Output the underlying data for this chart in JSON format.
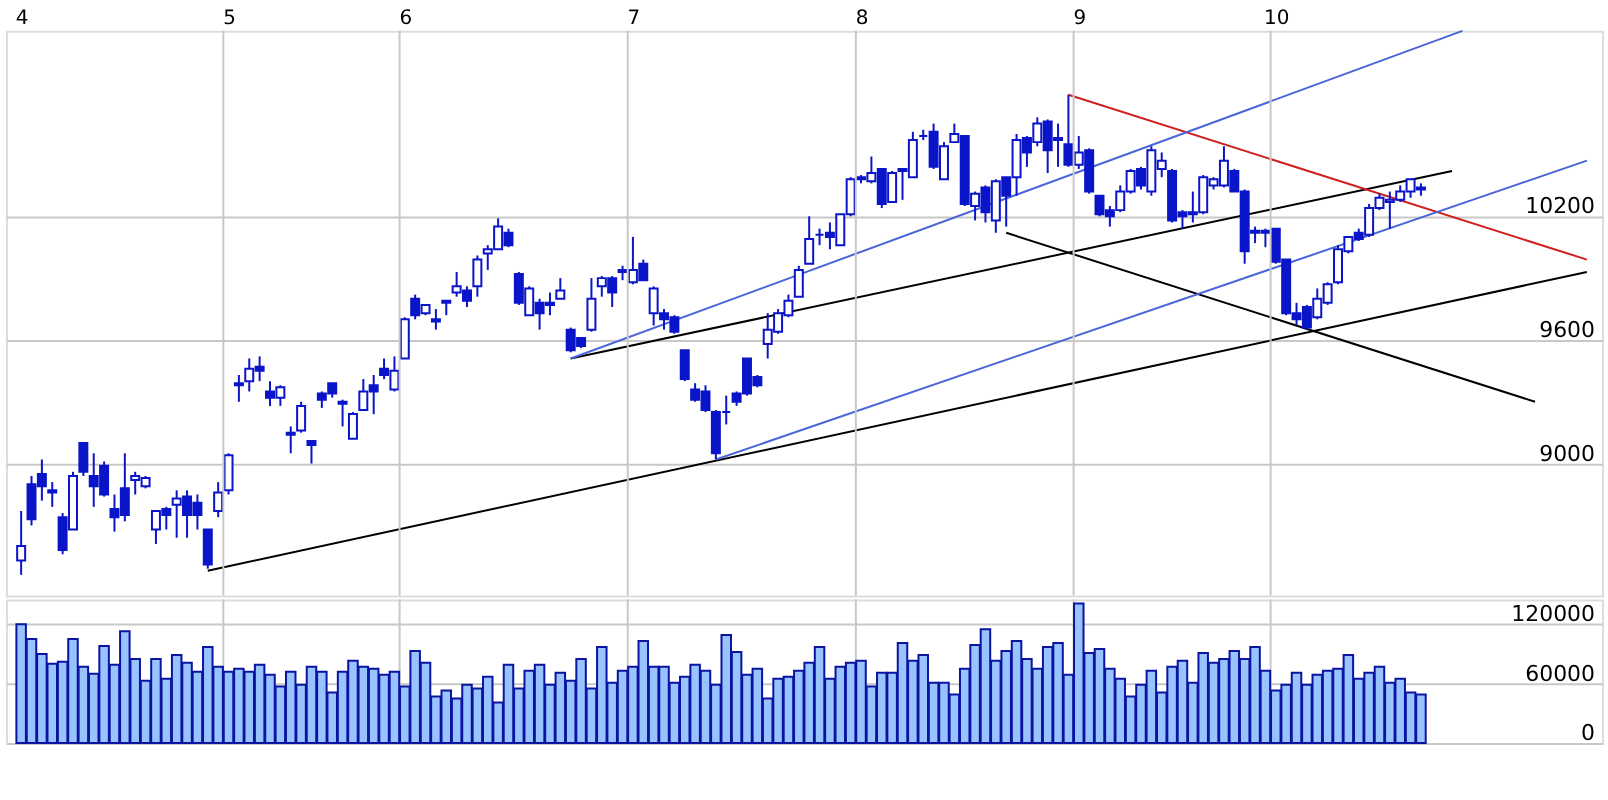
{
  "chart_data": [
    {
      "type": "candlestick",
      "color": "#0a14c8",
      "grid": true,
      "ylim": [
        8360,
        11100
      ],
      "yticks": [
        9000,
        9600,
        10200
      ],
      "categories": [
        "4",
        null,
        null,
        null,
        null,
        null,
        null,
        null,
        null,
        null,
        null,
        null,
        null,
        null,
        null,
        null,
        null,
        null,
        null,
        null,
        "5",
        null,
        null,
        null,
        null,
        null,
        null,
        null,
        null,
        null,
        null,
        null,
        null,
        null,
        null,
        null,
        null,
        "6",
        null,
        null,
        null,
        null,
        null,
        null,
        null,
        null,
        null,
        null,
        null,
        null,
        null,
        null,
        null,
        null,
        null,
        null,
        null,
        null,
        null,
        "7",
        null,
        null,
        null,
        null,
        null,
        null,
        null,
        null,
        null,
        null,
        null,
        null,
        null,
        null,
        null,
        null,
        null,
        null,
        null,
        null,
        null,
        "8",
        null,
        null,
        null,
        null,
        null,
        null,
        null,
        null,
        null,
        null,
        null,
        null,
        null,
        null,
        null,
        null,
        null,
        null,
        null,
        null,
        "9",
        null,
        null,
        null,
        null,
        null,
        null,
        null,
        null,
        null,
        null,
        null,
        null,
        null,
        null,
        null,
        null,
        null,
        null,
        "10",
        null,
        null,
        null,
        null,
        null,
        null,
        null,
        null,
        null,
        null,
        null,
        null,
        null,
        null,
        null,
        null,
        null,
        null,
        null,
        null,
        null,
        null,
        null,
        null,
        null,
        null,
        null,
        null,
        null,
        null
      ],
      "ohlc": [
        [
          8530,
          8770,
          8460,
          8600
        ],
        [
          8900,
          8940,
          8700,
          8730
        ],
        [
          8950,
          9020,
          8820,
          8890
        ],
        [
          8870,
          8910,
          8790,
          8860
        ],
        [
          8740,
          8760,
          8560,
          8580
        ],
        [
          8680,
          8960,
          8680,
          8940
        ],
        [
          9100,
          9100,
          8940,
          8960
        ],
        [
          8940,
          9050,
          8790,
          8890
        ],
        [
          8990,
          9010,
          8840,
          8850
        ],
        [
          8780,
          8850,
          8670,
          8740
        ],
        [
          8880,
          9050,
          8720,
          8750
        ],
        [
          8920,
          8960,
          8850,
          8940
        ],
        [
          8890,
          8940,
          8880,
          8930
        ],
        [
          8680,
          8770,
          8610,
          8770
        ],
        [
          8780,
          8790,
          8680,
          8750
        ],
        [
          8800,
          8870,
          8640,
          8830
        ],
        [
          8840,
          8870,
          8640,
          8750
        ],
        [
          8810,
          8850,
          8680,
          8750
        ],
        [
          8680,
          8680,
          8490,
          8510
        ],
        [
          8770,
          8910,
          8740,
          8860
        ],
        [
          8870,
          9050,
          8850,
          9040
        ],
        [
          9380,
          9430,
          9300,
          9390
        ],
        [
          9400,
          9510,
          9350,
          9460
        ],
        [
          9470,
          9520,
          9400,
          9450
        ],
        [
          9350,
          9400,
          9280,
          9320
        ],
        [
          9320,
          9380,
          9280,
          9370
        ],
        [
          9150,
          9180,
          9050,
          9140
        ],
        [
          9160,
          9300,
          9150,
          9280
        ],
        [
          9110,
          9110,
          9000,
          9090
        ],
        [
          9340,
          9350,
          9270,
          9310
        ],
        [
          9390,
          9390,
          9320,
          9340
        ],
        [
          9300,
          9310,
          9180,
          9290
        ],
        [
          9120,
          9250,
          9120,
          9240
        ],
        [
          9260,
          9410,
          9260,
          9350
        ],
        [
          9380,
          9430,
          9240,
          9350
        ],
        [
          9460,
          9510,
          9410,
          9430
        ],
        [
          9360,
          9520,
          9350,
          9450
        ],
        [
          9510,
          9710,
          9510,
          9700
        ],
        [
          9800,
          9820,
          9700,
          9720
        ],
        [
          9730,
          9770,
          9720,
          9770
        ],
        [
          9700,
          9750,
          9650,
          9690
        ],
        [
          9780,
          9790,
          9720,
          9790
        ],
        [
          9830,
          9930,
          9810,
          9860
        ],
        [
          9840,
          9860,
          9760,
          9790
        ],
        [
          9860,
          10010,
          9810,
          9990
        ],
        [
          10020,
          10060,
          9940,
          10040
        ],
        [
          10040,
          10190,
          10040,
          10150
        ],
        [
          10120,
          10140,
          10050,
          10060
        ],
        [
          9920,
          9930,
          9770,
          9780
        ],
        [
          9720,
          9860,
          9720,
          9850
        ],
        [
          9780,
          9800,
          9650,
          9730
        ],
        [
          9780,
          9830,
          9720,
          9770
        ],
        [
          9800,
          9900,
          9800,
          9840
        ],
        [
          9650,
          9660,
          9540,
          9550
        ],
        [
          9610,
          9610,
          9560,
          9570
        ],
        [
          9650,
          9900,
          9640,
          9800
        ],
        [
          9860,
          9910,
          9810,
          9900
        ],
        [
          9900,
          9910,
          9760,
          9830
        ],
        [
          9940,
          9960,
          9890,
          9930
        ],
        [
          9880,
          10100,
          9870,
          9940
        ],
        [
          9970,
          9990,
          9890,
          9890
        ],
        [
          9730,
          9860,
          9670,
          9850
        ],
        [
          9730,
          9750,
          9650,
          9700
        ],
        [
          9710,
          9720,
          9630,
          9640
        ],
        [
          9550,
          9550,
          9400,
          9410
        ],
        [
          9360,
          9390,
          9300,
          9310
        ],
        [
          9350,
          9380,
          9250,
          9260
        ],
        [
          9250,
          9260,
          9020,
          9050
        ],
        [
          9250,
          9330,
          9190,
          9250
        ],
        [
          9340,
          9350,
          9280,
          9300
        ],
        [
          9510,
          9510,
          9330,
          9340
        ],
        [
          9420,
          9430,
          9370,
          9380
        ],
        [
          9580,
          9730,
          9510,
          9650
        ],
        [
          9640,
          9750,
          9630,
          9730
        ],
        [
          9720,
          9820,
          9710,
          9790
        ],
        [
          9810,
          9960,
          9810,
          9940
        ],
        [
          9970,
          10200,
          9970,
          10090
        ],
        [
          10110,
          10140,
          10060,
          10110
        ],
        [
          10120,
          10170,
          10040,
          10100
        ],
        [
          10060,
          10210,
          10060,
          10210
        ],
        [
          10210,
          10390,
          10200,
          10380
        ],
        [
          10390,
          10400,
          10360,
          10380
        ],
        [
          10370,
          10490,
          10360,
          10410
        ],
        [
          10430,
          10430,
          10240,
          10260
        ],
        [
          10270,
          10420,
          10270,
          10410
        ],
        [
          10430,
          10430,
          10280,
          10420
        ],
        [
          10390,
          10610,
          10390,
          10570
        ],
        [
          10590,
          10620,
          10570,
          10590
        ],
        [
          10610,
          10650,
          10430,
          10440
        ],
        [
          10380,
          10560,
          10380,
          10540
        ],
        [
          10560,
          10650,
          10560,
          10600
        ],
        [
          10590,
          10590,
          10250,
          10260
        ],
        [
          10250,
          10320,
          10180,
          10310
        ],
        [
          10340,
          10350,
          10170,
          10220
        ],
        [
          10180,
          10380,
          10120,
          10370
        ],
        [
          10390,
          10390,
          10150,
          10300
        ],
        [
          10390,
          10600,
          10300,
          10570
        ],
        [
          10580,
          10590,
          10440,
          10510
        ],
        [
          10560,
          10680,
          10540,
          10650
        ],
        [
          10660,
          10670,
          10410,
          10520
        ],
        [
          10580,
          10650,
          10440,
          10570
        ],
        [
          10550,
          10790,
          10440,
          10450
        ],
        [
          10450,
          10590,
          10430,
          10510
        ],
        [
          10520,
          10530,
          10310,
          10320
        ],
        [
          10300,
          10300,
          10200,
          10210
        ],
        [
          10230,
          10250,
          10150,
          10200
        ],
        [
          10230,
          10350,
          10220,
          10320
        ],
        [
          10320,
          10430,
          10310,
          10420
        ],
        [
          10430,
          10440,
          10330,
          10350
        ],
        [
          10320,
          10540,
          10300,
          10520
        ],
        [
          10430,
          10510,
          10390,
          10470
        ],
        [
          10420,
          10430,
          10170,
          10180
        ],
        [
          10220,
          10230,
          10140,
          10200
        ],
        [
          10220,
          10320,
          10170,
          10210
        ],
        [
          10220,
          10400,
          10210,
          10390
        ],
        [
          10350,
          10390,
          10330,
          10380
        ],
        [
          10350,
          10540,
          10340,
          10470
        ],
        [
          10420,
          10430,
          10320,
          10320
        ],
        [
          10320,
          10330,
          9970,
          10030
        ],
        [
          10120,
          10150,
          10070,
          10130
        ],
        [
          10130,
          10140,
          10050,
          10120
        ],
        [
          10140,
          10140,
          9970,
          9980
        ],
        [
          9990,
          9990,
          9720,
          9730
        ],
        [
          9730,
          9780,
          9670,
          9700
        ],
        [
          9760,
          9770,
          9650,
          9660
        ],
        [
          9710,
          9850,
          9700,
          9800
        ],
        [
          9780,
          9880,
          9770,
          9870
        ],
        [
          9880,
          10060,
          9870,
          10040
        ],
        [
          10030,
          10100,
          10020,
          10100
        ],
        [
          10120,
          10140,
          10080,
          10090
        ],
        [
          10110,
          10260,
          10100,
          10240
        ],
        [
          10240,
          10310,
          10230,
          10290
        ],
        [
          10270,
          10320,
          10140,
          10280
        ],
        [
          10280,
          10350,
          10270,
          10320
        ],
        [
          10320,
          10380,
          10290,
          10380
        ],
        [
          10330,
          10360,
          10300,
          10340
        ],
        null,
        null,
        null,
        null,
        null,
        null,
        null,
        null,
        null,
        null,
        null,
        null,
        null,
        null,
        null,
        null
      ],
      "series": [
        {
          "type": "line",
          "color": "#000000",
          "values": [
            null,
            null,
            null,
            null,
            null,
            null,
            null,
            null,
            null,
            null,
            null,
            null,
            null,
            null,
            null,
            null,
            null,
            null,
            8480,
            null,
            null,
            null,
            null,
            null,
            null,
            null,
            null,
            null,
            null,
            null,
            null,
            null,
            null,
            null,
            null,
            null,
            null,
            null,
            null,
            null,
            null,
            null,
            null,
            null,
            null,
            null,
            null,
            null,
            null,
            null,
            null,
            null,
            null,
            null,
            null,
            null,
            null,
            null,
            null,
            null,
            null,
            null,
            null,
            null,
            null,
            null,
            null,
            null,
            null,
            null,
            null,
            null,
            null,
            null,
            null,
            null,
            null,
            null,
            null,
            null,
            null,
            null,
            null,
            null,
            null,
            null,
            null,
            null,
            null,
            null,
            null,
            null,
            null,
            null,
            null,
            null,
            null,
            null,
            null,
            null,
            null,
            null,
            null,
            null,
            null,
            null,
            null,
            null,
            null,
            null,
            null,
            null,
            null,
            null,
            null,
            null,
            null,
            null,
            null,
            null,
            null,
            null,
            null,
            null,
            null,
            null,
            null,
            null,
            null,
            null,
            null,
            null,
            null,
            null,
            null,
            null,
            null,
            null,
            null,
            null,
            null,
            null,
            null,
            null,
            null,
            null,
            null,
            null,
            null,
            null,
            null,
            9930
          ]
        },
        {
          "type": "line",
          "color": "#000000",
          "values": [
            null,
            null,
            null,
            null,
            null,
            null,
            null,
            null,
            null,
            null,
            null,
            null,
            null,
            null,
            null,
            null,
            null,
            null,
            null,
            null,
            null,
            null,
            null,
            null,
            null,
            null,
            null,
            null,
            null,
            null,
            null,
            null,
            null,
            null,
            null,
            null,
            null,
            null,
            null,
            null,
            null,
            null,
            null,
            null,
            null,
            null,
            null,
            null,
            null,
            null,
            null,
            null,
            null,
            9510,
            null,
            null,
            null,
            null,
            null,
            null,
            null,
            null,
            null,
            null,
            null,
            null,
            null,
            null,
            null,
            null,
            null,
            null,
            null,
            null,
            null,
            null,
            null,
            null,
            null,
            null,
            null,
            null,
            null,
            null,
            null,
            null,
            null,
            null,
            null,
            null,
            null,
            null,
            null,
            null,
            null,
            null,
            null,
            null,
            null,
            null,
            null,
            null,
            null,
            null,
            null,
            null,
            null,
            null,
            null,
            null,
            null,
            null,
            null,
            null,
            null,
            null,
            null,
            null,
            null,
            null,
            null,
            null,
            null,
            null,
            null,
            null,
            null,
            null,
            null,
            null,
            null,
            null,
            null,
            null,
            null,
            null,
            null,
            null,
            10420,
            null,
            null,
            null,
            null,
            null,
            null,
            null,
            null,
            null,
            null,
            null,
            null,
            null
          ]
        },
        {
          "type": "line",
          "color": "#000000",
          "values": [
            null,
            null,
            null,
            null,
            null,
            null,
            null,
            null,
            null,
            null,
            null,
            null,
            null,
            null,
            null,
            null,
            null,
            null,
            null,
            null,
            null,
            null,
            null,
            null,
            null,
            null,
            null,
            null,
            null,
            null,
            null,
            null,
            null,
            null,
            null,
            null,
            null,
            null,
            null,
            null,
            null,
            null,
            null,
            null,
            null,
            null,
            null,
            null,
            null,
            null,
            null,
            null,
            null,
            null,
            null,
            null,
            null,
            null,
            null,
            null,
            null,
            null,
            null,
            null,
            null,
            null,
            null,
            null,
            null,
            null,
            null,
            null,
            null,
            null,
            null,
            null,
            null,
            null,
            null,
            null,
            null,
            null,
            null,
            null,
            null,
            null,
            null,
            null,
            null,
            null,
            null,
            null,
            null,
            null,
            null,
            10120,
            null,
            null,
            null,
            null,
            null,
            null,
            null,
            null,
            null,
            null,
            null,
            null,
            null,
            null,
            null,
            null,
            null,
            null,
            null,
            null,
            null,
            null,
            null,
            null,
            null,
            null,
            null,
            null,
            null,
            null,
            null,
            null,
            null,
            null,
            null,
            null,
            null,
            null,
            null,
            null,
            null,
            null,
            null,
            null,
            null,
            null,
            null,
            null,
            null,
            null,
            9300,
            null,
            null,
            null,
            null,
            null
          ]
        },
        {
          "type": "line",
          "color": "#d02020",
          "values": [
            null,
            null,
            null,
            null,
            null,
            null,
            null,
            null,
            null,
            null,
            null,
            null,
            null,
            null,
            null,
            null,
            null,
            null,
            null,
            null,
            null,
            null,
            null,
            null,
            null,
            null,
            null,
            null,
            null,
            null,
            null,
            null,
            null,
            null,
            null,
            null,
            null,
            null,
            null,
            null,
            null,
            null,
            null,
            null,
            null,
            null,
            null,
            null,
            null,
            null,
            null,
            null,
            null,
            null,
            null,
            null,
            null,
            null,
            null,
            null,
            null,
            null,
            null,
            null,
            null,
            null,
            null,
            null,
            null,
            null,
            null,
            null,
            null,
            null,
            null,
            null,
            null,
            null,
            null,
            null,
            null,
            null,
            null,
            null,
            null,
            null,
            null,
            null,
            null,
            null,
            null,
            null,
            null,
            null,
            null,
            null,
            null,
            null,
            null,
            null,
            null,
            10790,
            null,
            null,
            null,
            null,
            null,
            null,
            null,
            null,
            null,
            null,
            null,
            null,
            null,
            null,
            null,
            null,
            null,
            null,
            null,
            null,
            null,
            null,
            null,
            null,
            null,
            null,
            null,
            null,
            null,
            null,
            null,
            null,
            null,
            null,
            null,
            null,
            null,
            null,
            null,
            null,
            null,
            null,
            null,
            null,
            null,
            null,
            null,
            null,
            null,
            9990
          ]
        },
        {
          "type": "line",
          "color": "#4a66d8",
          "values": [
            null,
            null,
            null,
            null,
            null,
            null,
            null,
            null,
            null,
            null,
            null,
            null,
            null,
            null,
            null,
            null,
            null,
            null,
            null,
            null,
            null,
            null,
            null,
            null,
            null,
            null,
            null,
            null,
            null,
            null,
            null,
            null,
            null,
            null,
            null,
            null,
            null,
            null,
            null,
            null,
            null,
            null,
            null,
            null,
            null,
            null,
            null,
            null,
            null,
            null,
            null,
            null,
            null,
            9510,
            null,
            null,
            null,
            null,
            null,
            null,
            null,
            null,
            null,
            null,
            null,
            null,
            null,
            null,
            null,
            null,
            null,
            null,
            null,
            null,
            null,
            null,
            null,
            null,
            null,
            null,
            null,
            null,
            null,
            null,
            null,
            null,
            null,
            null,
            null,
            null,
            null,
            null,
            null,
            null,
            null,
            null,
            null,
            null,
            null,
            null,
            null,
            null,
            null,
            null,
            null,
            null,
            null,
            null,
            null,
            null,
            null,
            null,
            null,
            null,
            null,
            null,
            null,
            null,
            null,
            null,
            null,
            null,
            null,
            null,
            null,
            null,
            null,
            null,
            null,
            null,
            null,
            null,
            null,
            null,
            null,
            null,
            null,
            null,
            null,
            11100,
            null,
            null,
            null,
            null,
            null,
            null,
            null,
            null,
            null,
            null,
            null,
            null
          ]
        },
        {
          "type": "line",
          "color": "#4a66d8",
          "values": [
            null,
            null,
            null,
            null,
            null,
            null,
            null,
            null,
            null,
            null,
            null,
            null,
            null,
            null,
            null,
            null,
            null,
            null,
            null,
            null,
            null,
            null,
            null,
            null,
            null,
            null,
            null,
            null,
            null,
            null,
            null,
            null,
            null,
            null,
            null,
            null,
            null,
            null,
            null,
            null,
            null,
            null,
            null,
            null,
            null,
            null,
            null,
            null,
            null,
            null,
            null,
            null,
            null,
            null,
            null,
            null,
            null,
            null,
            null,
            null,
            null,
            null,
            null,
            null,
            null,
            null,
            null,
            9020,
            null,
            null,
            null,
            null,
            null,
            null,
            null,
            null,
            null,
            null,
            null,
            null,
            null,
            null,
            null,
            null,
            null,
            null,
            null,
            null,
            null,
            null,
            null,
            null,
            null,
            null,
            null,
            null,
            null,
            null,
            null,
            null,
            null,
            null,
            null,
            null,
            null,
            null,
            null,
            null,
            null,
            null,
            null,
            null,
            null,
            null,
            null,
            null,
            null,
            null,
            null,
            null,
            null,
            null,
            null,
            null,
            null,
            null,
            null,
            null,
            null,
            null,
            null,
            null,
            null,
            null,
            null,
            null,
            null,
            null,
            null,
            null,
            null,
            null,
            null,
            null,
            null,
            null,
            null,
            null,
            null,
            null,
            null,
            10470
          ]
        }
      ]
    },
    {
      "type": "bar",
      "color": "#99c3ff",
      "grid": true,
      "tick_labels": "y",
      "ylim": [
        0,
        145000
      ],
      "yticks": [
        0,
        60000,
        120000
      ],
      "categories": [
        "4",
        null,
        null,
        null,
        null,
        null,
        null,
        null,
        null,
        null,
        null,
        null,
        null,
        null,
        null,
        null,
        null,
        null,
        null,
        null,
        "5",
        null,
        null,
        null,
        null,
        null,
        null,
        null,
        null,
        null,
        null,
        null,
        null,
        null,
        null,
        null,
        null,
        "6",
        null,
        null,
        null,
        null,
        null,
        null,
        null,
        null,
        null,
        null,
        null,
        null,
        null,
        null,
        null,
        null,
        null,
        null,
        null,
        null,
        null,
        "7",
        null,
        null,
        null,
        null,
        null,
        null,
        null,
        null,
        null,
        null,
        null,
        null,
        null,
        null,
        null,
        null,
        null,
        null,
        null,
        null,
        null,
        "8",
        null,
        null,
        null,
        null,
        null,
        null,
        null,
        null,
        null,
        null,
        null,
        null,
        null,
        null,
        null,
        null,
        null,
        null,
        null,
        null,
        "9",
        null,
        null,
        null,
        null,
        null,
        null,
        null,
        null,
        null,
        null,
        null,
        null,
        null,
        null,
        null,
        null,
        null,
        null,
        "10",
        null,
        null,
        null,
        null,
        null,
        null,
        null,
        null,
        null,
        null,
        null,
        null,
        null,
        null,
        null,
        null,
        null,
        null,
        null,
        null,
        null,
        null,
        null,
        null,
        null,
        null,
        null,
        null,
        null,
        null
      ],
      "values": [
        120000,
        105000,
        90000,
        80000,
        82000,
        105000,
        77000,
        70000,
        98000,
        79000,
        113000,
        85000,
        63000,
        85000,
        65000,
        89000,
        81000,
        72000,
        97000,
        77000,
        72000,
        75000,
        72000,
        79000,
        69000,
        57000,
        72000,
        59000,
        77000,
        72000,
        51000,
        72000,
        83000,
        77000,
        75000,
        69000,
        72000,
        57000,
        93000,
        81000,
        47000,
        53000,
        45000,
        59000,
        55000,
        67000,
        41000,
        79000,
        55000,
        73000,
        79000,
        59000,
        71000,
        63000,
        85000,
        55000,
        97000,
        61000,
        73000,
        77000,
        103000,
        77000,
        77000,
        61000,
        67000,
        79000,
        73000,
        59000,
        109000,
        92000,
        69000,
        75000,
        45000,
        65000,
        67000,
        73000,
        81000,
        97000,
        65000,
        77000,
        81000,
        83000,
        57000,
        71000,
        71000,
        101000,
        83000,
        89000,
        61000,
        61000,
        49000,
        75000,
        99000,
        115000,
        83000,
        93000,
        103000,
        85000,
        75000,
        97000,
        101000,
        69000,
        141000,
        91000,
        95000,
        75000,
        65000,
        47000,
        59000,
        73000,
        51000,
        77000,
        83000,
        61000,
        91000,
        81000,
        85000,
        93000,
        85000,
        97000,
        73000,
        53000,
        59000,
        71000,
        59000,
        69000,
        73000,
        75000,
        89000,
        65000,
        71000,
        77000,
        61000,
        65000,
        51000,
        49000,
        null,
        null,
        null,
        null,
        null,
        null,
        null,
        null,
        null,
        null,
        null,
        null,
        null,
        null,
        null,
        null
      ]
    }
  ]
}
